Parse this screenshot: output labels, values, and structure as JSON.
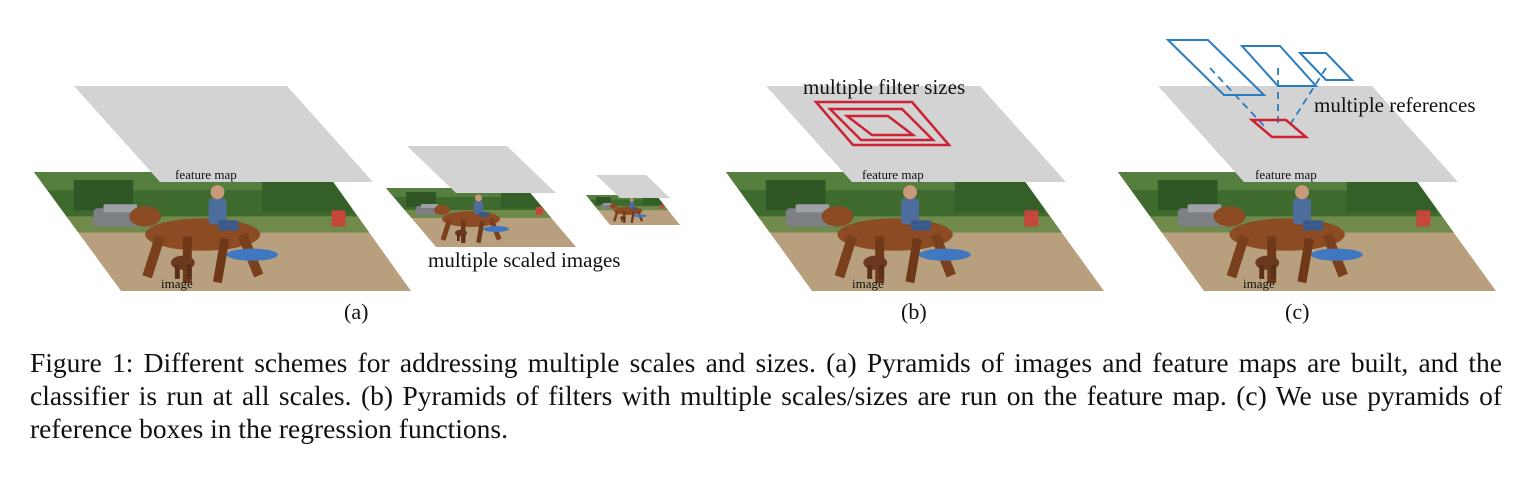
{
  "figure": {
    "panels": [
      {
        "id": "a",
        "label": "(a)",
        "feature_map_label": "feature map",
        "image_label": "image",
        "annotation": "multiple scaled images"
      },
      {
        "id": "b",
        "label": "(b)",
        "feature_map_label": "feature map",
        "image_label": "image",
        "annotation": "multiple filter sizes"
      },
      {
        "id": "c",
        "label": "(c)",
        "feature_map_label": "feature map",
        "image_label": "image",
        "annotation": "multiple references"
      }
    ],
    "caption": "Figure 1: Different schemes for addressing multiple scales and sizes. (a) Pyramids of images and feature maps are built, and the classifier is run at all scales. (b) Pyramids of filters with multiple scales/sizes are run on the feature map. (c) We use pyramids of reference boxes in the regression functions.",
    "colors": {
      "feature_map": "#d3d3d3",
      "filter_boxes": "#cc2233",
      "reference_boxes": "#2a7cc0",
      "ground": "#b39b7a",
      "trees": "#3e6b2f",
      "horse": "#8a4a22"
    }
  }
}
